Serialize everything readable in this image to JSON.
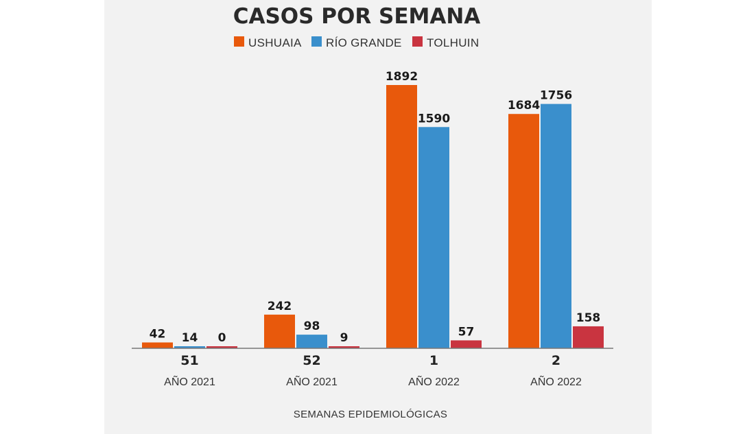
{
  "chart_data": {
    "type": "bar",
    "title": "CASOS POR SEMANA",
    "xlabel": "SEMANAS EPIDEMIOLÓGICAS",
    "ylabel": "",
    "categories": [
      "51",
      "52",
      "1",
      "2"
    ],
    "category_sublabels": [
      "AÑO 2021",
      "AÑO 2021",
      "AÑO 2022",
      "AÑO 2022"
    ],
    "series": [
      {
        "name": "USHUAIA",
        "color": "#e8590c",
        "values": [
          42,
          242,
          1892,
          1684
        ]
      },
      {
        "name": "RÍO GRANDE",
        "color": "#3a8fcc",
        "values": [
          14,
          98,
          1590,
          1756
        ]
      },
      {
        "name": "TOLHUIN",
        "color": "#c93440",
        "values": [
          0,
          9,
          57,
          158
        ]
      }
    ],
    "ylim": [
      0,
      1892
    ],
    "grid": false,
    "legend_position": "top-center",
    "data_labels": true
  }
}
